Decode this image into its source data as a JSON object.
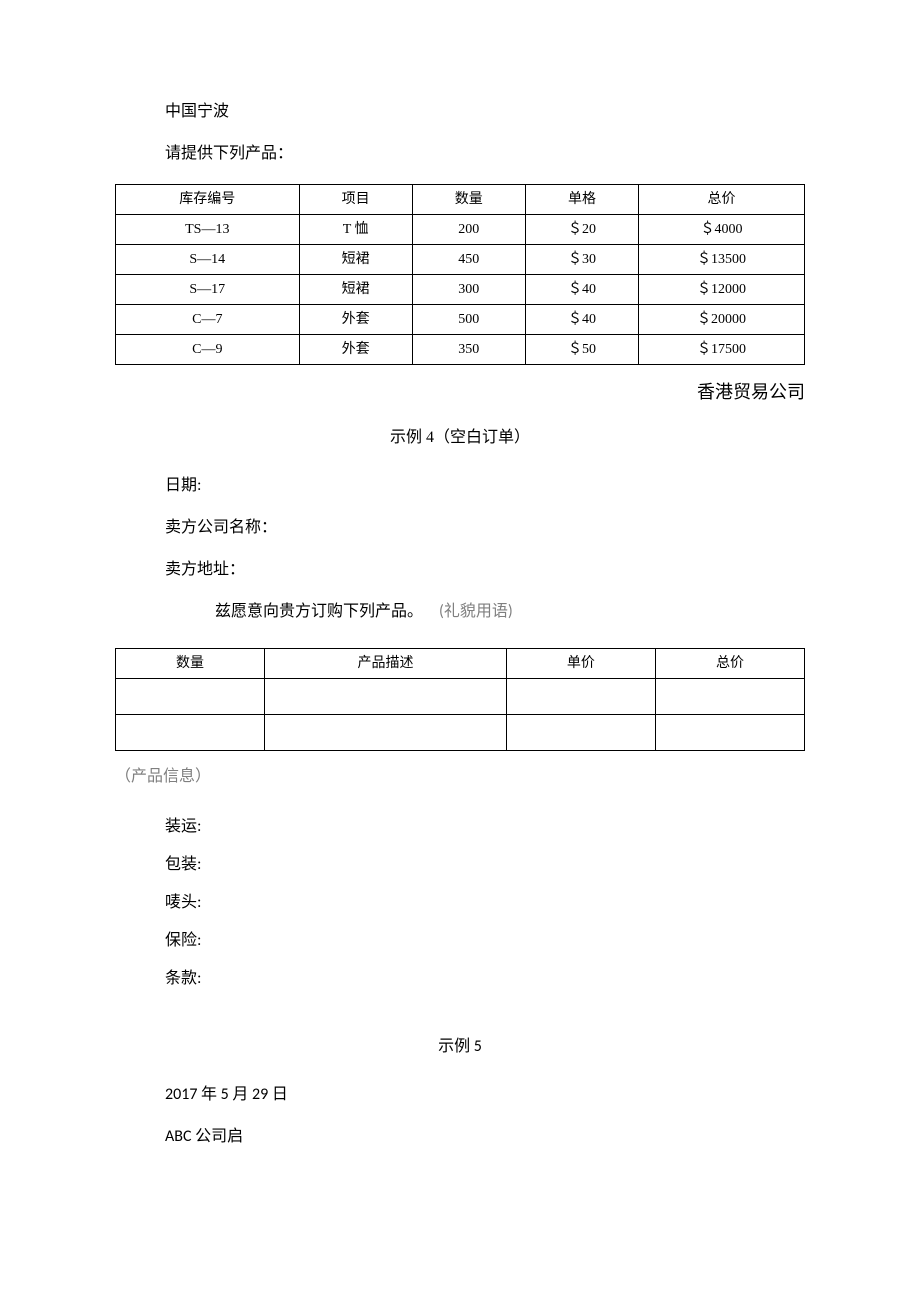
{
  "header": {
    "city": "中国宁波",
    "request": "请提供下列产品：",
    "company_sig": "香港贸易公司"
  },
  "table1": {
    "columns": [
      "库存编号",
      "项目",
      "数量",
      "单格",
      "总价"
    ],
    "rows": [
      [
        "TS—13",
        "T 恤",
        "200",
        "＄20",
        "＄4000"
      ],
      [
        "S—14",
        "短裙",
        "450",
        "＄30",
        "＄13500"
      ],
      [
        "S—17",
        "短裙",
        "300",
        "＄40",
        "＄12000"
      ],
      [
        "C—7",
        "外套",
        "500",
        "＄40",
        "＄20000"
      ],
      [
        "C—9",
        "外套",
        "350",
        "＄50",
        "＄17500"
      ]
    ]
  },
  "example4": {
    "title": "示例 4（空白订单）",
    "date_label": "日期:",
    "seller_name_label": "卖方公司名称：",
    "seller_addr_label": "卖方地址：",
    "intent_line": "兹愿意向贵方订购下列产品。",
    "intent_note": "(礼貌用语)",
    "product_info_note": "（产品信息）",
    "shipment": "装运:",
    "packaging": "包装:",
    "marks": "唛头:",
    "insurance": "保险:",
    "terms": "条款:"
  },
  "table2": {
    "columns": [
      "数量",
      "产品描述",
      "单价",
      "总价"
    ]
  },
  "example5": {
    "title": "示例 5",
    "date": "2017 年 5 月 29 日",
    "company": "ABC 公司启"
  },
  "colors": {
    "text": "#000000",
    "gray": "#7f7f7f",
    "border": "#000000",
    "background": "#ffffff"
  }
}
